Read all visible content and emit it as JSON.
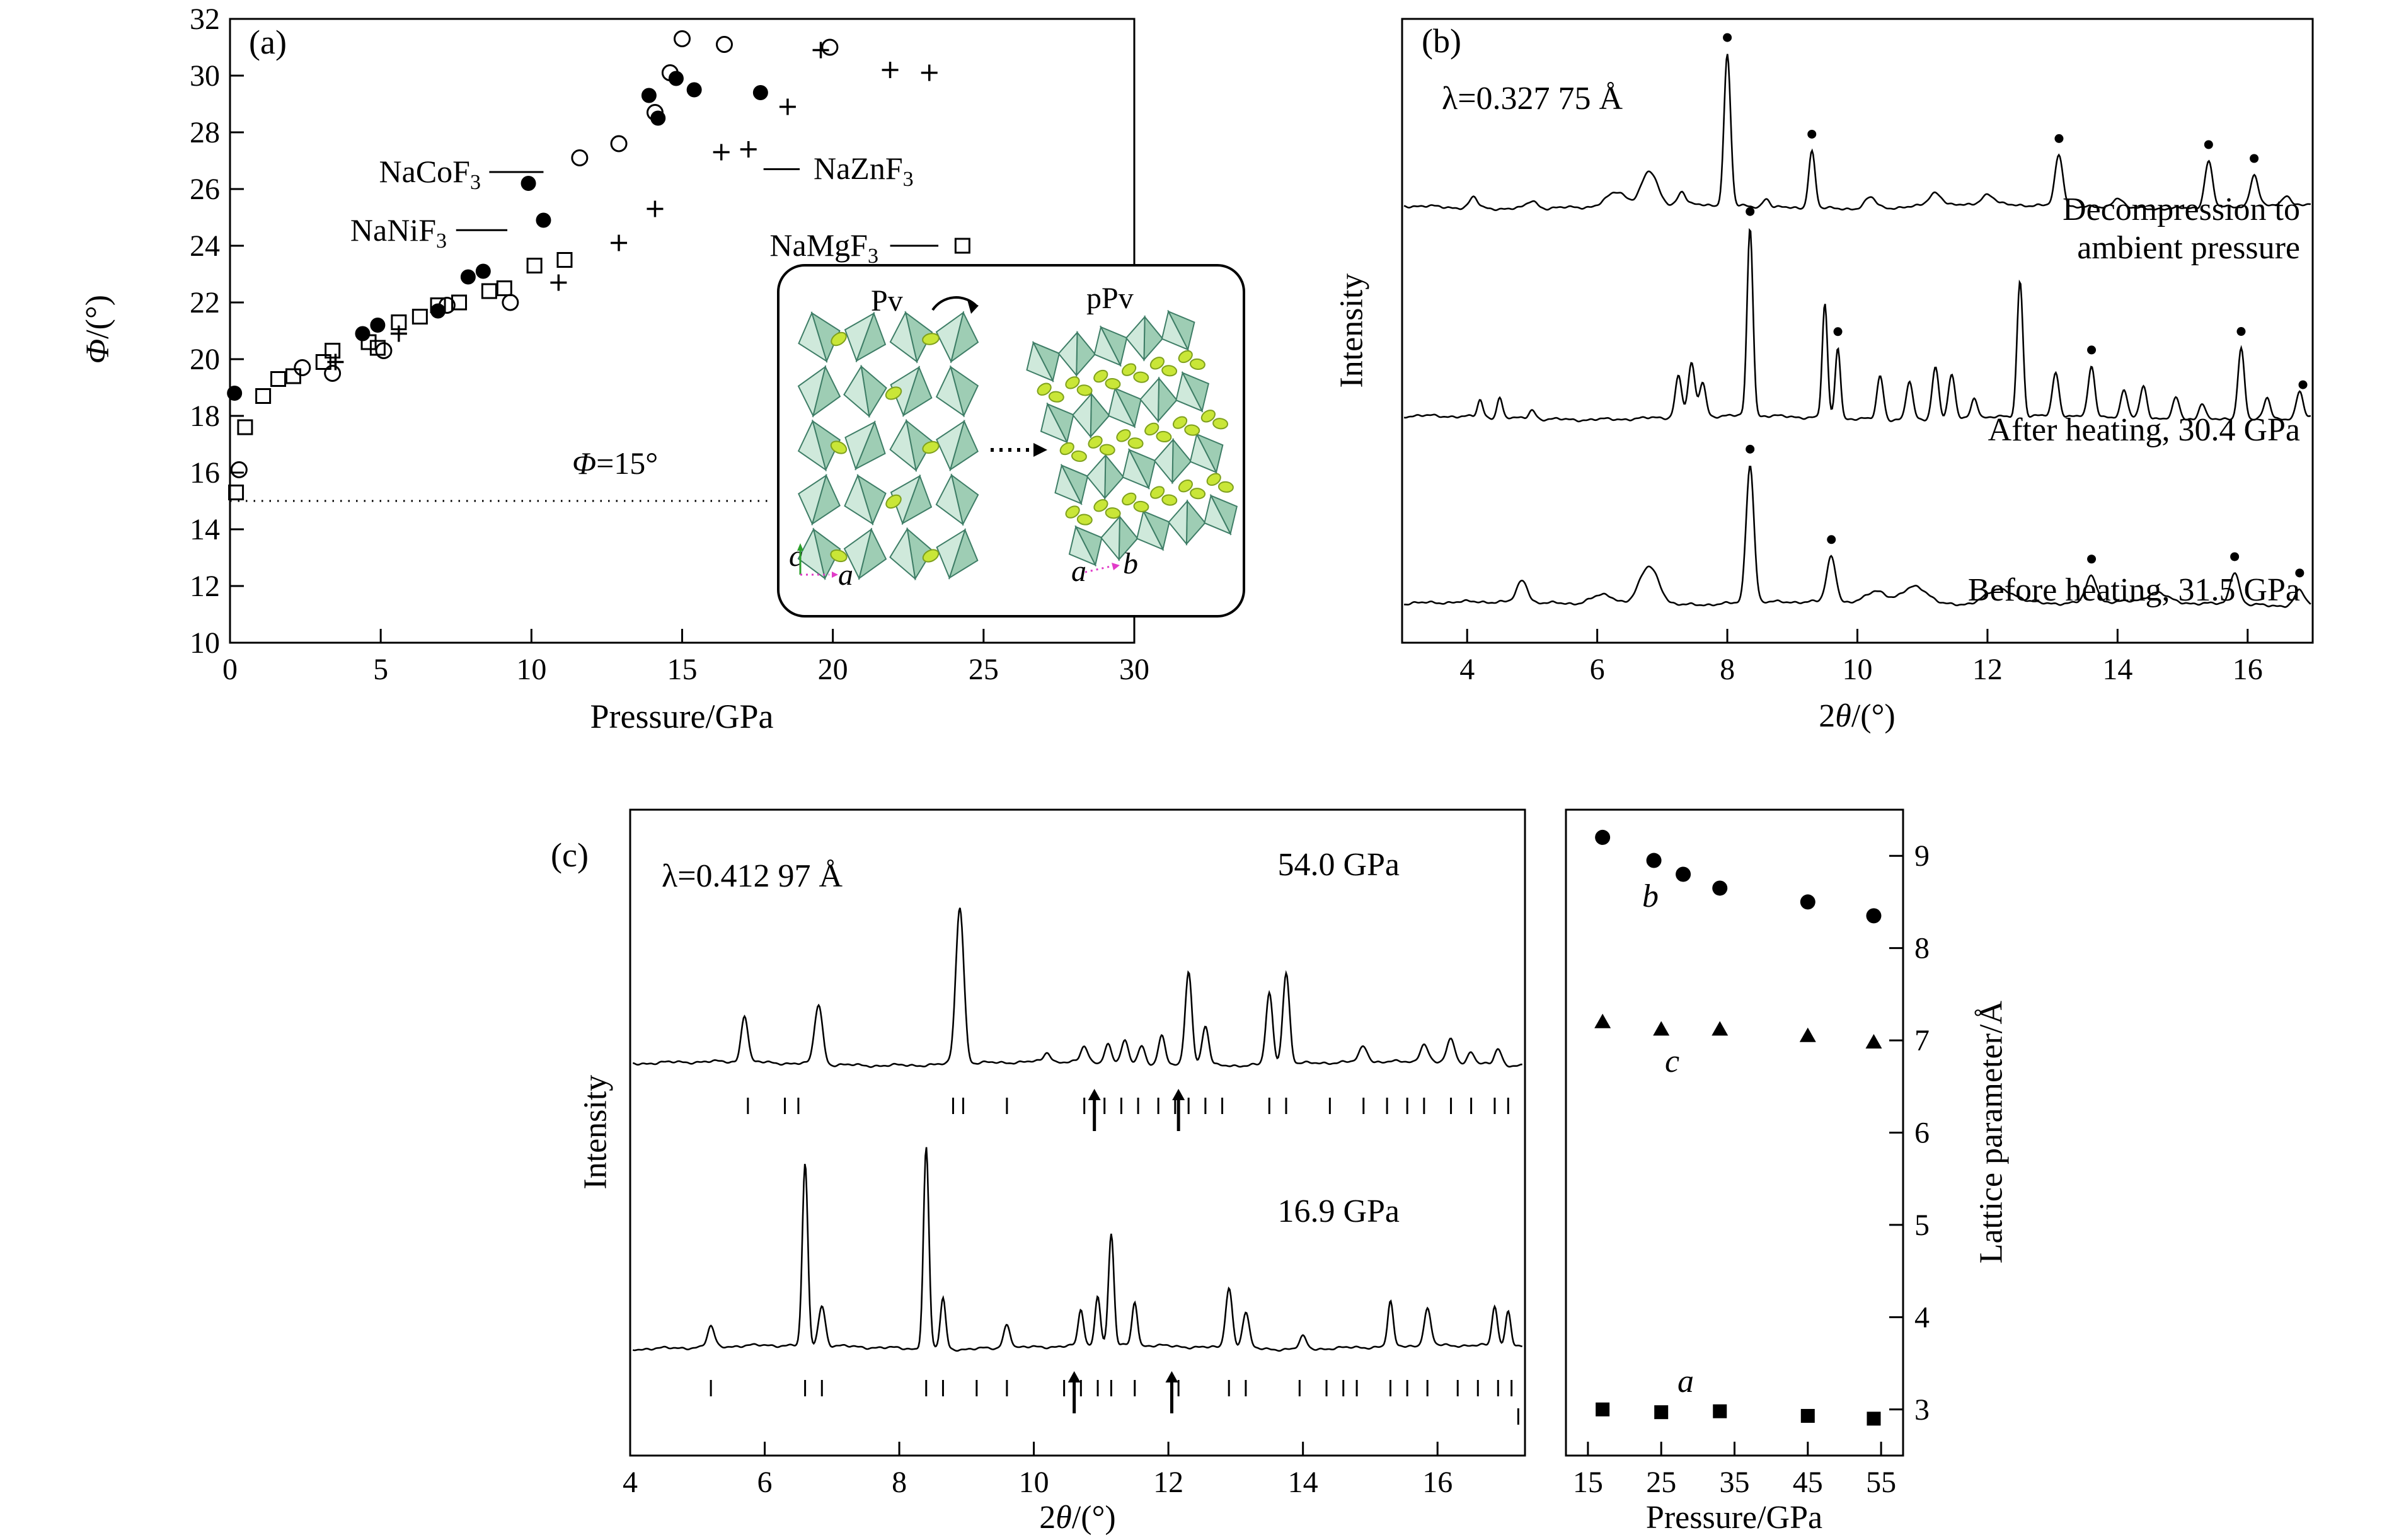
{
  "panel_labels": {
    "a": "(a)",
    "b": "(b)",
    "c": "(c)"
  },
  "chart_data": [
    {
      "id": "phi_vs_pressure",
      "type": "scatter",
      "xlabel": "Pressure/GPa",
      "ylabel_parts": {
        "phi": "Φ",
        "post": "/(°)"
      },
      "xlim": [
        0,
        30
      ],
      "ylim": [
        10,
        32
      ],
      "xticks": [
        0,
        5,
        10,
        15,
        20,
        25,
        30
      ],
      "yticks": [
        10,
        12,
        14,
        16,
        18,
        20,
        22,
        24,
        26,
        28,
        30,
        32
      ],
      "hline": {
        "y": 15,
        "x1": 0,
        "x2": 17.9,
        "label_phi": "Φ",
        "label_rest": "=15°"
      },
      "series": [
        {
          "name": "NaCoF3",
          "marker": "circle-filled",
          "points": [
            [
              0.15,
              18.8
            ],
            [
              4.4,
              20.9
            ],
            [
              4.9,
              21.2
            ],
            [
              6.9,
              21.7
            ],
            [
              7.9,
              22.9
            ],
            [
              8.4,
              23.1
            ],
            [
              9.9,
              26.2
            ],
            [
              10.4,
              24.9
            ],
            [
              13.9,
              29.3
            ],
            [
              14.2,
              28.5
            ],
            [
              14.8,
              29.9
            ],
            [
              15.4,
              29.5
            ],
            [
              17.6,
              29.4
            ]
          ]
        },
        {
          "name": "NaNiF3",
          "marker": "circle-open",
          "points": [
            [
              0.3,
              16.1
            ],
            [
              2.4,
              19.7
            ],
            [
              3.4,
              19.5
            ],
            [
              5.1,
              20.3
            ],
            [
              7.2,
              21.9
            ],
            [
              9.3,
              22.0
            ],
            [
              11.6,
              27.1
            ],
            [
              12.9,
              27.6
            ],
            [
              14.1,
              28.7
            ],
            [
              14.6,
              30.1
            ],
            [
              15.0,
              31.3
            ],
            [
              16.4,
              31.1
            ],
            [
              19.9,
              31.0
            ]
          ]
        },
        {
          "name": "NaZnF3",
          "marker": "plus",
          "points": [
            [
              3.5,
              19.9
            ],
            [
              5.6,
              20.9
            ],
            [
              10.9,
              22.7
            ],
            [
              12.9,
              24.1
            ],
            [
              14.1,
              25.3
            ],
            [
              16.3,
              27.3
            ],
            [
              17.2,
              27.4
            ],
            [
              18.5,
              28.9
            ],
            [
              19.6,
              30.9
            ],
            [
              21.9,
              30.2
            ],
            [
              23.2,
              30.1
            ]
          ]
        },
        {
          "name": "NaMgF3",
          "marker": "square-open",
          "points": [
            [
              0.2,
              15.3
            ],
            [
              0.5,
              17.6
            ],
            [
              1.1,
              18.7
            ],
            [
              1.6,
              19.3
            ],
            [
              2.1,
              19.4
            ],
            [
              3.1,
              19.9
            ],
            [
              3.4,
              20.3
            ],
            [
              4.6,
              20.6
            ],
            [
              4.9,
              20.4
            ],
            [
              5.6,
              21.3
            ],
            [
              6.3,
              21.5
            ],
            [
              6.9,
              21.9
            ],
            [
              7.6,
              22.0
            ],
            [
              8.6,
              22.4
            ],
            [
              9.1,
              22.5
            ],
            [
              10.1,
              23.3
            ],
            [
              11.1,
              23.5
            ]
          ]
        }
      ],
      "legend": [
        {
          "main": "NaCoF",
          "sub": "3",
          "line": {
            "x1": 8.6,
            "x2": 10.4,
            "y": 26.6
          }
        },
        {
          "main": "NaNiF",
          "sub": "3",
          "line": {
            "x1": 7.5,
            "x2": 9.2,
            "y": 24.55
          }
        },
        {
          "main": "NaZnF",
          "sub": "3",
          "line": {
            "x1": 17.7,
            "x2": 18.9,
            "y": 26.7
          }
        },
        {
          "main": "NaMgF",
          "sub": "3",
          "line": {
            "x1": 21.9,
            "x2": 23.5,
            "y": 24.0
          },
          "marker": "square-open",
          "marker_x": 24.3
        }
      ],
      "inset": {
        "left_title": "Pv",
        "right_title": "pPv",
        "left_axis_labels": [
          "c",
          "a"
        ],
        "right_axis_labels": [
          "a",
          "b"
        ]
      }
    },
    {
      "id": "xrd_heating_cycle",
      "type": "line",
      "lambda_label": "λ=0.327 75 Å",
      "xlabel_parts": {
        "pre": "2",
        "theta": "θ",
        "post": "/(°)"
      },
      "ylabel": "Intensity",
      "xlim": [
        3,
        17
      ],
      "xticks": [
        4,
        6,
        8,
        10,
        12,
        14,
        16
      ],
      "traces": [
        {
          "label_lines": [
            "Decompression to",
            "ambient pressure"
          ],
          "seed": 1,
          "peaks": [
            [
              4.1,
              7,
              0.06
            ],
            [
              5.0,
              5,
              0.08
            ],
            [
              6.3,
              9,
              0.15
            ],
            [
              6.8,
              22,
              0.12
            ],
            [
              7.3,
              9,
              0.06
            ],
            [
              8.0,
              100,
              0.05
            ],
            [
              8.6,
              6,
              0.05
            ],
            [
              9.3,
              38,
              0.05
            ],
            [
              10.2,
              7,
              0.08
            ],
            [
              11.2,
              9,
              0.1
            ],
            [
              12.0,
              7,
              0.1
            ],
            [
              13.1,
              34,
              0.06
            ],
            [
              14.0,
              7,
              0.08
            ],
            [
              15.4,
              31,
              0.06
            ],
            [
              16.1,
              21,
              0.06
            ],
            [
              16.6,
              7,
              0.06
            ]
          ],
          "dots": [
            8.0,
            9.3,
            13.1,
            15.4,
            16.1
          ]
        },
        {
          "label_lines": [
            "After heating, 30.4 GPa"
          ],
          "seed": 2,
          "peaks": [
            [
              4.2,
              9,
              0.04
            ],
            [
              4.5,
              11,
              0.04
            ],
            [
              5.0,
              5,
              0.05
            ],
            [
              7.25,
              22,
              0.05
            ],
            [
              7.45,
              28,
              0.05
            ],
            [
              7.62,
              18,
              0.05
            ],
            [
              8.35,
              100,
              0.045
            ],
            [
              9.5,
              60,
              0.04
            ],
            [
              9.7,
              38,
              0.04
            ],
            [
              10.35,
              23,
              0.05
            ],
            [
              10.8,
              20,
              0.05
            ],
            [
              11.2,
              28,
              0.05
            ],
            [
              11.45,
              23,
              0.05
            ],
            [
              11.8,
              11,
              0.05
            ],
            [
              12.5,
              72,
              0.045
            ],
            [
              13.05,
              23,
              0.05
            ],
            [
              13.6,
              26,
              0.05
            ],
            [
              14.1,
              14,
              0.05
            ],
            [
              14.4,
              17,
              0.05
            ],
            [
              14.9,
              11,
              0.05
            ],
            [
              15.3,
              9,
              0.05
            ],
            [
              15.9,
              38,
              0.05
            ],
            [
              16.3,
              11,
              0.05
            ],
            [
              16.8,
              14,
              0.05
            ]
          ],
          "dots": [
            8.35,
            9.7,
            13.6,
            15.9,
            16.85
          ]
        },
        {
          "label_lines": [
            "Before heating, 31.5 GPa"
          ],
          "seed": 3,
          "peaks": [
            [
              4.85,
              16,
              0.08
            ],
            [
              6.1,
              7,
              0.2
            ],
            [
              6.8,
              28,
              0.15
            ],
            [
              8.35,
              100,
              0.06
            ],
            [
              9.6,
              33,
              0.07
            ],
            [
              10.3,
              9,
              0.15
            ],
            [
              10.9,
              13,
              0.2
            ],
            [
              12.2,
              11,
              0.25
            ],
            [
              13.6,
              19,
              0.08
            ],
            [
              14.6,
              7,
              0.15
            ],
            [
              15.8,
              24,
              0.07
            ],
            [
              16.8,
              11,
              0.07
            ]
          ],
          "dots": [
            8.35,
            9.6,
            13.6,
            15.8,
            16.8
          ]
        }
      ]
    },
    {
      "id": "xrd_two_pressures",
      "type": "line",
      "lambda_label": "λ=0.412 97 Å",
      "xlabel_parts": {
        "pre": "2",
        "theta": "θ",
        "post": "/(°)"
      },
      "ylabel": "Intensity",
      "xlim": [
        4,
        17.3
      ],
      "xticks": [
        4,
        6,
        8,
        10,
        12,
        14,
        16
      ],
      "traces": [
        {
          "label": "54.0 GPa",
          "seed": 4,
          "peaks": [
            [
              5.7,
              30,
              0.05
            ],
            [
              6.8,
              38,
              0.06
            ],
            [
              8.9,
              100,
              0.06
            ],
            [
              10.2,
              6,
              0.05
            ],
            [
              10.75,
              10,
              0.05
            ],
            [
              11.1,
              12,
              0.05
            ],
            [
              11.35,
              14,
              0.05
            ],
            [
              11.6,
              12,
              0.05
            ],
            [
              11.9,
              18,
              0.05
            ],
            [
              12.3,
              60,
              0.05
            ],
            [
              12.55,
              25,
              0.05
            ],
            [
              13.5,
              45,
              0.05
            ],
            [
              13.75,
              58,
              0.05
            ],
            [
              14.9,
              10,
              0.06
            ],
            [
              15.8,
              12,
              0.06
            ],
            [
              16.2,
              15,
              0.06
            ],
            [
              16.5,
              8,
              0.05
            ],
            [
              16.9,
              10,
              0.05
            ]
          ],
          "hkl_ticks": [
            5.75,
            6.3,
            6.5,
            8.8,
            8.95,
            9.6,
            10.75,
            11.05,
            11.3,
            11.55,
            11.85,
            12.1,
            12.3,
            12.55,
            12.8,
            13.5,
            13.75,
            14.4,
            14.9,
            15.25,
            15.55,
            15.8,
            16.2,
            16.5,
            16.85,
            17.05
          ],
          "arrows": [
            10.9,
            12.15
          ]
        },
        {
          "label": "16.9 GPa",
          "seed": 5,
          "peaks": [
            [
              5.2,
              10,
              0.05
            ],
            [
              6.6,
              90,
              0.04
            ],
            [
              6.85,
              20,
              0.05
            ],
            [
              8.4,
              100,
              0.04
            ],
            [
              8.65,
              25,
              0.04
            ],
            [
              9.6,
              12,
              0.05
            ],
            [
              10.7,
              18,
              0.04
            ],
            [
              10.95,
              25,
              0.04
            ],
            [
              11.15,
              55,
              0.04
            ],
            [
              11.5,
              22,
              0.04
            ],
            [
              12.9,
              30,
              0.05
            ],
            [
              13.15,
              18,
              0.05
            ],
            [
              14.0,
              6,
              0.05
            ],
            [
              15.3,
              22,
              0.04
            ],
            [
              15.85,
              18,
              0.05
            ],
            [
              16.85,
              20,
              0.04
            ],
            [
              17.05,
              18,
              0.04
            ]
          ],
          "hkl_ticks": [
            5.2,
            6.6,
            6.85,
            8.4,
            8.65,
            9.15,
            9.6,
            10.45,
            10.7,
            10.95,
            11.15,
            11.5,
            12.15,
            12.9,
            13.15,
            13.95,
            14.35,
            14.6,
            14.8,
            15.3,
            15.55,
            15.85,
            16.3,
            16.6,
            16.9,
            17.1
          ],
          "hkl_ticks2": [
            17.2
          ],
          "arrows": [
            10.6,
            12.05
          ]
        }
      ]
    },
    {
      "id": "lattice_parameters",
      "type": "scatter",
      "xlabel": "Pressure/GPa",
      "ylabel": "Lattice parameter/Å",
      "xlim": [
        12,
        58
      ],
      "ylim": [
        2.5,
        9.5
      ],
      "xticks": [
        15,
        25,
        35,
        45,
        55
      ],
      "yticks": [
        3,
        4,
        5,
        6,
        7,
        8,
        9
      ],
      "series": [
        {
          "name": "b",
          "marker": "circle-filled",
          "points": [
            [
              17,
              9.2
            ],
            [
              24,
              8.95
            ],
            [
              28,
              8.8
            ],
            [
              33,
              8.65
            ],
            [
              45,
              8.5
            ],
            [
              54,
              8.35
            ]
          ]
        },
        {
          "name": "c",
          "marker": "triangle-filled",
          "points": [
            [
              17,
              7.2
            ],
            [
              25,
              7.12
            ],
            [
              33,
              7.12
            ],
            [
              45,
              7.05
            ],
            [
              54,
              6.98
            ]
          ]
        },
        {
          "name": "a",
          "marker": "square-filled",
          "points": [
            [
              17,
              3.0
            ],
            [
              25,
              2.97
            ],
            [
              33,
              2.98
            ],
            [
              45,
              2.93
            ],
            [
              54,
              2.9
            ]
          ]
        }
      ]
    }
  ]
}
